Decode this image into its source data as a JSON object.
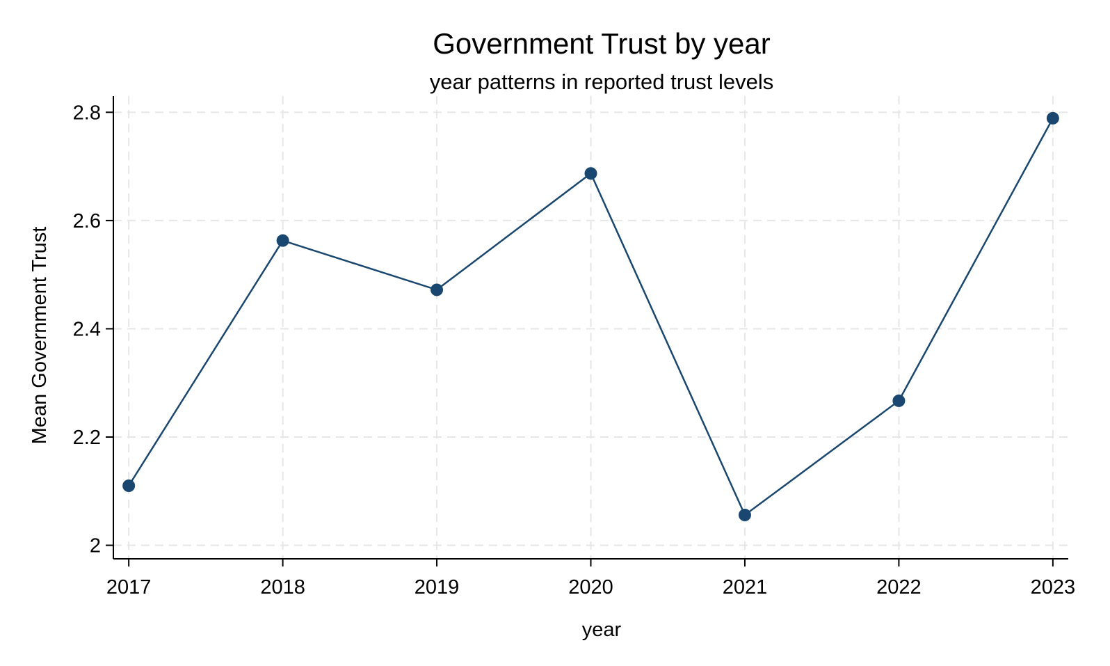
{
  "chart_data": {
    "type": "line",
    "title": "Government Trust by year",
    "subtitle": "year patterns in reported trust levels",
    "xlabel": "year",
    "ylabel": "Mean Government Trust",
    "x": [
      2017,
      2018,
      2019,
      2020,
      2021,
      2022,
      2023
    ],
    "x_tick_labels": [
      "2017",
      "2018",
      "2019",
      "2020",
      "2021",
      "2022",
      "2023"
    ],
    "series": [
      {
        "name": "Mean Government Trust",
        "values": [
          2.11,
          2.563,
          2.472,
          2.687,
          2.056,
          2.267,
          2.789
        ]
      }
    ],
    "y_ticks": [
      2,
      2.2,
      2.4,
      2.6,
      2.8
    ],
    "y_tick_labels": [
      "2",
      "2.2",
      "2.4",
      "2.6",
      "2.8"
    ],
    "ylim": [
      1.975,
      2.83
    ],
    "xlim": [
      2016.9,
      2023.1
    ],
    "grid": true,
    "legend": "none",
    "colors": {
      "series": "#1a476f",
      "grid": "#e6e6e6",
      "axis": "#000000"
    }
  }
}
